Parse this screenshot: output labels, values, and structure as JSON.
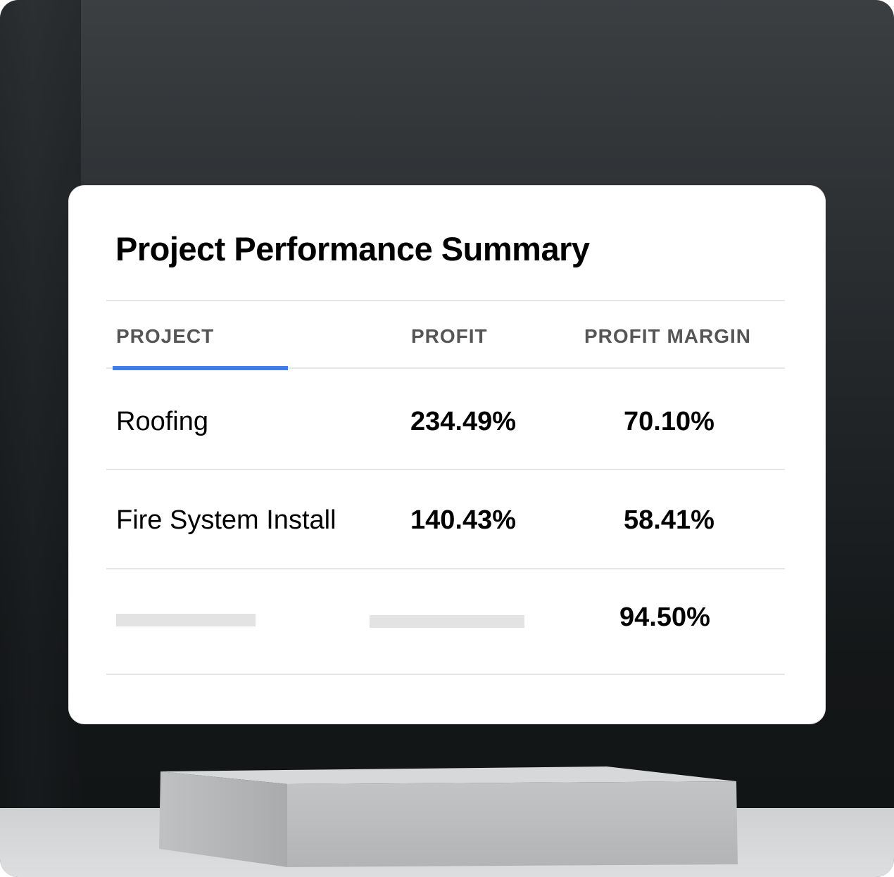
{
  "card": {
    "title": "Project Performance Summary",
    "columns": [
      "PROJECT",
      "PROFIT",
      "PROFIT MARGIN"
    ],
    "active_column": "PROJECT",
    "rows": [
      {
        "project": "Roofing",
        "profit": "234.49%",
        "margin": "70.10%"
      },
      {
        "project": "Fire System Install",
        "profit": "140.43%",
        "margin": "58.41%"
      },
      {
        "project": "",
        "profit": "",
        "margin": "94.50%"
      }
    ]
  },
  "colors": {
    "accent": "#3d7eea",
    "background": "#1c2022",
    "card": "#ffffff"
  }
}
